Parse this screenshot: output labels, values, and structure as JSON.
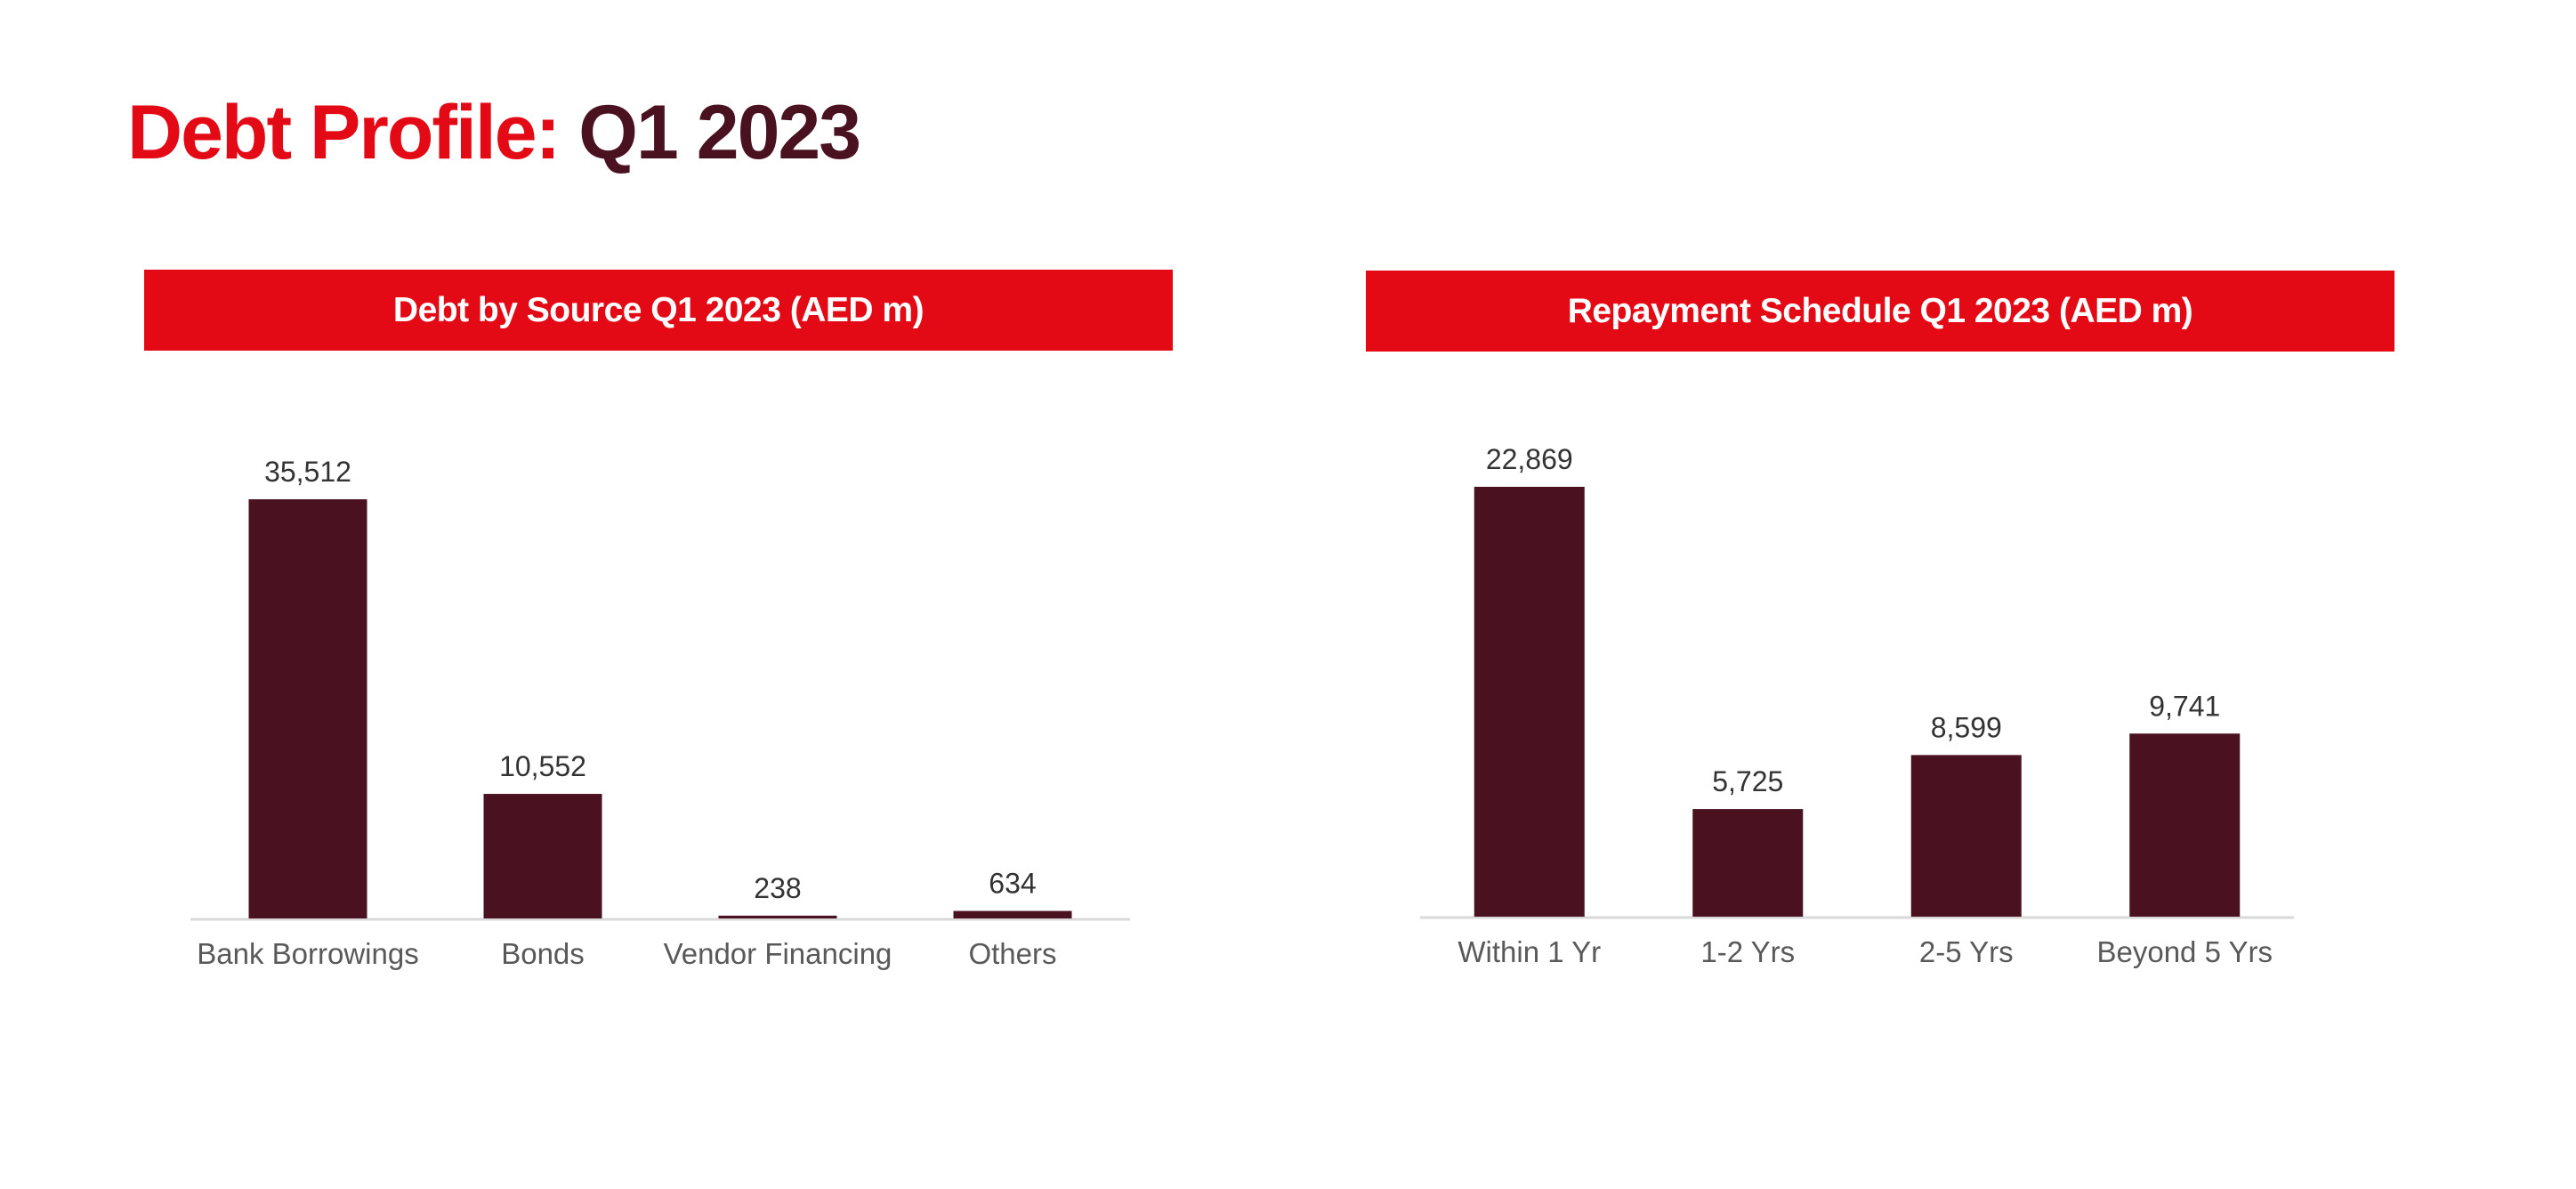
{
  "page": {
    "title_prefix": "Debt Profile:",
    "title_suffix": " Q1 2023"
  },
  "colors": {
    "accent_red": "#e30a16",
    "bar_maroon": "#4a1220",
    "axis_line": "#d9d9d9"
  },
  "chart_data": [
    {
      "type": "bar",
      "title": "Debt by Source Q1 2023  (AED m)",
      "categories": [
        "Bank Borrowings",
        "Bonds",
        "Vendor Financing",
        "Others"
      ],
      "values": [
        35512,
        10552,
        238,
        634
      ],
      "value_labels": [
        "35,512",
        "10,552",
        "238",
        "634"
      ],
      "ylim": [
        0,
        35512
      ],
      "grid": false,
      "legend": "none"
    },
    {
      "type": "bar",
      "title": "Repayment  Schedule Q1 2023  (AED m)",
      "categories": [
        "Within 1 Yr",
        "1-2 Yrs",
        "2-5 Yrs",
        "Beyond 5 Yrs"
      ],
      "values": [
        22869,
        5725,
        8599,
        9741
      ],
      "value_labels": [
        "22,869",
        "5,725",
        "8,599",
        "9,741"
      ],
      "ylim": [
        0,
        22869
      ],
      "grid": false,
      "legend": "none"
    }
  ]
}
